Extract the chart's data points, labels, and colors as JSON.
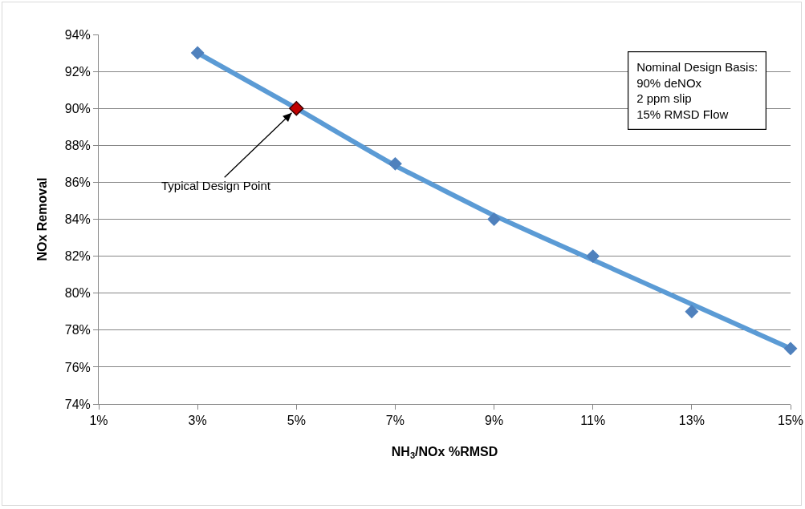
{
  "chart_data": {
    "type": "scatter",
    "xlabel": "NH$_{3}$/NOx %RMSD",
    "ylabel": "NOx Removal",
    "x": [
      3,
      5,
      7,
      9,
      11,
      13,
      15
    ],
    "series": [
      {
        "type": "line",
        "color": "#5b9bd5",
        "x": [
          3,
          5,
          7,
          9,
          11,
          13,
          15
        ],
        "values": [
          93,
          90,
          86.9,
          84.2,
          81.8,
          79.4,
          77
        ],
        "marker": "none",
        "line_style": "solid"
      },
      {
        "color": "#4f81bd",
        "values": [
          93,
          null,
          87,
          84,
          82,
          79,
          77
        ],
        "marker": "diamond"
      },
      {
        "color": "#c00000",
        "x": [
          5
        ],
        "values": [
          90
        ],
        "marker": "diamond"
      }
    ],
    "xlim": [
      1,
      15
    ],
    "xticks": [
      {
        "value": 1,
        "label": "1%"
      },
      {
        "value": 3,
        "label": "3%"
      },
      {
        "value": 5,
        "label": "5%"
      },
      {
        "value": 7,
        "label": "7%"
      },
      {
        "value": 9,
        "label": "9%"
      },
      {
        "value": 11,
        "label": "11%"
      },
      {
        "value": 13,
        "label": "13%"
      },
      {
        "value": 15,
        "label": "15%"
      }
    ],
    "ylim": [
      74,
      94
    ],
    "yticks": [
      {
        "value": 74,
        "label": "74%"
      },
      {
        "value": 76,
        "label": "76%"
      },
      {
        "value": 78,
        "label": "78%"
      },
      {
        "value": 80,
        "label": "80%"
      },
      {
        "value": 82,
        "label": "82%"
      },
      {
        "value": 84,
        "label": "84%"
      },
      {
        "value": 86,
        "label": "86%"
      },
      {
        "value": 88,
        "label": "88%"
      },
      {
        "value": 90,
        "label": "90%"
      },
      {
        "value": 92,
        "label": "92%"
      },
      {
        "value": 94,
        "label": "94%"
      }
    ],
    "grid": "y",
    "annotations": [
      {
        "text": "Typical Design Point",
        "x": 5,
        "y": 90
      },
      "Nominal Design Basis:\n90% deNOx\n2 ppm slip\n15% RMSD Flow"
    ]
  }
}
